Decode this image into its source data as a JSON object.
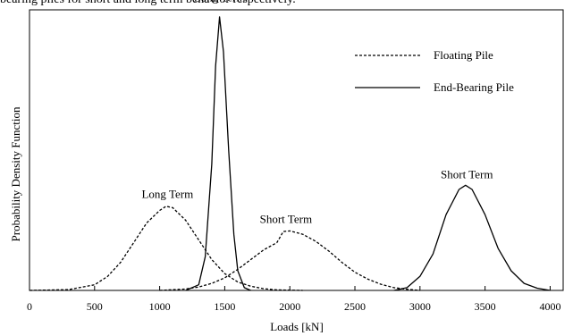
{
  "caption_fragment": "bearing piles for short and long term behavior respectively.",
  "chart_data": {
    "type": "line",
    "title": "",
    "xlabel": "Loads [kN]",
    "ylabel": "Probability Density Function",
    "xlim": [
      0,
      4100
    ],
    "ylim": [
      0,
      1
    ],
    "x_ticks": [
      "0",
      "500",
      "1000",
      "1500",
      "2000",
      "2500",
      "3000",
      "3500",
      "4000"
    ],
    "y_ticks": [],
    "grid": false,
    "legend_position": "top-right",
    "legend": [
      {
        "label": "Floating Pile",
        "style": "dashed"
      },
      {
        "label": "End-Bearing Pile",
        "style": "solid"
      }
    ],
    "series": [
      {
        "name": "Floating Pile",
        "term": "Long Term",
        "style": "dashed",
        "x": [
          0,
          300,
          500,
          600,
          700,
          800,
          900,
          1000,
          1050,
          1100,
          1200,
          1300,
          1400,
          1500,
          1600,
          1700,
          1800,
          1900,
          2000,
          2100
        ],
        "y": [
          0,
          0.003,
          0.02,
          0.05,
          0.1,
          0.17,
          0.24,
          0.285,
          0.3,
          0.295,
          0.25,
          0.18,
          0.11,
          0.06,
          0.03,
          0.015,
          0.006,
          0.002,
          0.001,
          0
        ]
      },
      {
        "name": "Floating Pile",
        "term": "Short Term",
        "style": "dashed",
        "x": [
          1000,
          1200,
          1300,
          1400,
          1500,
          1600,
          1700,
          1800,
          1900,
          1950,
          2000,
          2100,
          2200,
          2300,
          2400,
          2500,
          2600,
          2700,
          2800,
          2900,
          3000
        ],
        "y": [
          0,
          0.005,
          0.012,
          0.025,
          0.045,
          0.075,
          0.11,
          0.145,
          0.17,
          0.21,
          0.212,
          0.2,
          0.175,
          0.14,
          0.1,
          0.065,
          0.04,
          0.022,
          0.01,
          0.004,
          0
        ]
      },
      {
        "name": "End-Bearing Pile",
        "term": "Long Term",
        "style": "solid",
        "x": [
          1200,
          1300,
          1350,
          1400,
          1430,
          1460,
          1490,
          1530,
          1570,
          1600,
          1650,
          1700
        ],
        "y": [
          0,
          0.02,
          0.12,
          0.45,
          0.8,
          0.975,
          0.85,
          0.5,
          0.2,
          0.07,
          0.01,
          0
        ]
      },
      {
        "name": "End-Bearing Pile",
        "term": "Short Term",
        "style": "solid",
        "x": [
          2800,
          2900,
          3000,
          3100,
          3200,
          3300,
          3350,
          3400,
          3500,
          3600,
          3700,
          3800,
          3900,
          4000
        ],
        "y": [
          0,
          0.01,
          0.05,
          0.13,
          0.27,
          0.36,
          0.375,
          0.36,
          0.27,
          0.15,
          0.07,
          0.025,
          0.008,
          0
        ]
      }
    ],
    "annotations": [
      {
        "text": "Long Term",
        "x": 1460,
        "y": 1.03
      },
      {
        "text": "Long Term",
        "x": 1060,
        "y": 0.33
      },
      {
        "text": "Short Term",
        "x": 1970,
        "y": 0.24
      },
      {
        "text": "Short Term",
        "x": 3360,
        "y": 0.4
      }
    ]
  }
}
